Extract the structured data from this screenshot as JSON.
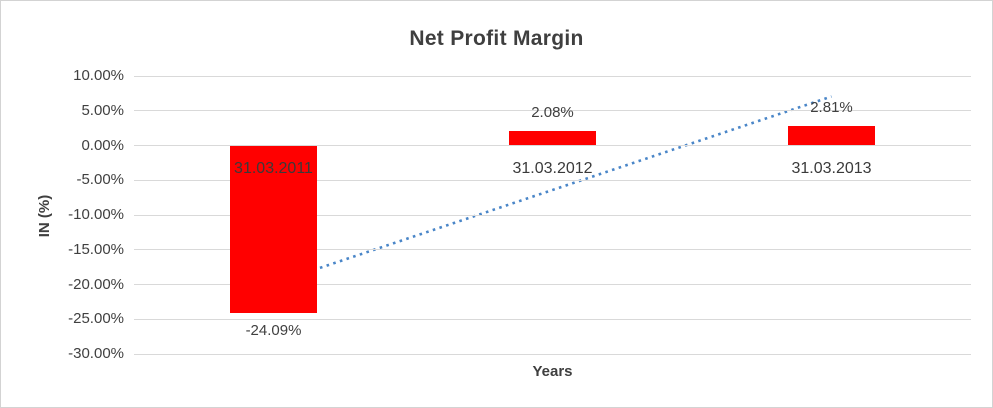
{
  "chart_data": {
    "type": "bar",
    "title": "Net Profit Margin",
    "categories": [
      "31.03.2011",
      "31.03.2012",
      "31.03.2013"
    ],
    "values": [
      -24.09,
      2.08,
      2.81
    ],
    "data_labels": [
      "-24.09%",
      "2.08%",
      "2.81%"
    ],
    "xlabel": "Years",
    "ylabel": "IN (%)",
    "ylim": [
      -30,
      10
    ],
    "ytick_step": 5,
    "ytick_labels": [
      "10.00%",
      "5.00%",
      "0.00%",
      "-5.00%",
      "-10.00%",
      "-15.00%",
      "-20.00%",
      "-25.00%",
      "-30.00%"
    ],
    "grid": true,
    "legend": "none",
    "bar_color": "#ff0000",
    "trendline": {
      "type": "linear",
      "style": "dotted",
      "color": "#4a86c8",
      "spans_categories": [
        1,
        3
      ]
    }
  }
}
